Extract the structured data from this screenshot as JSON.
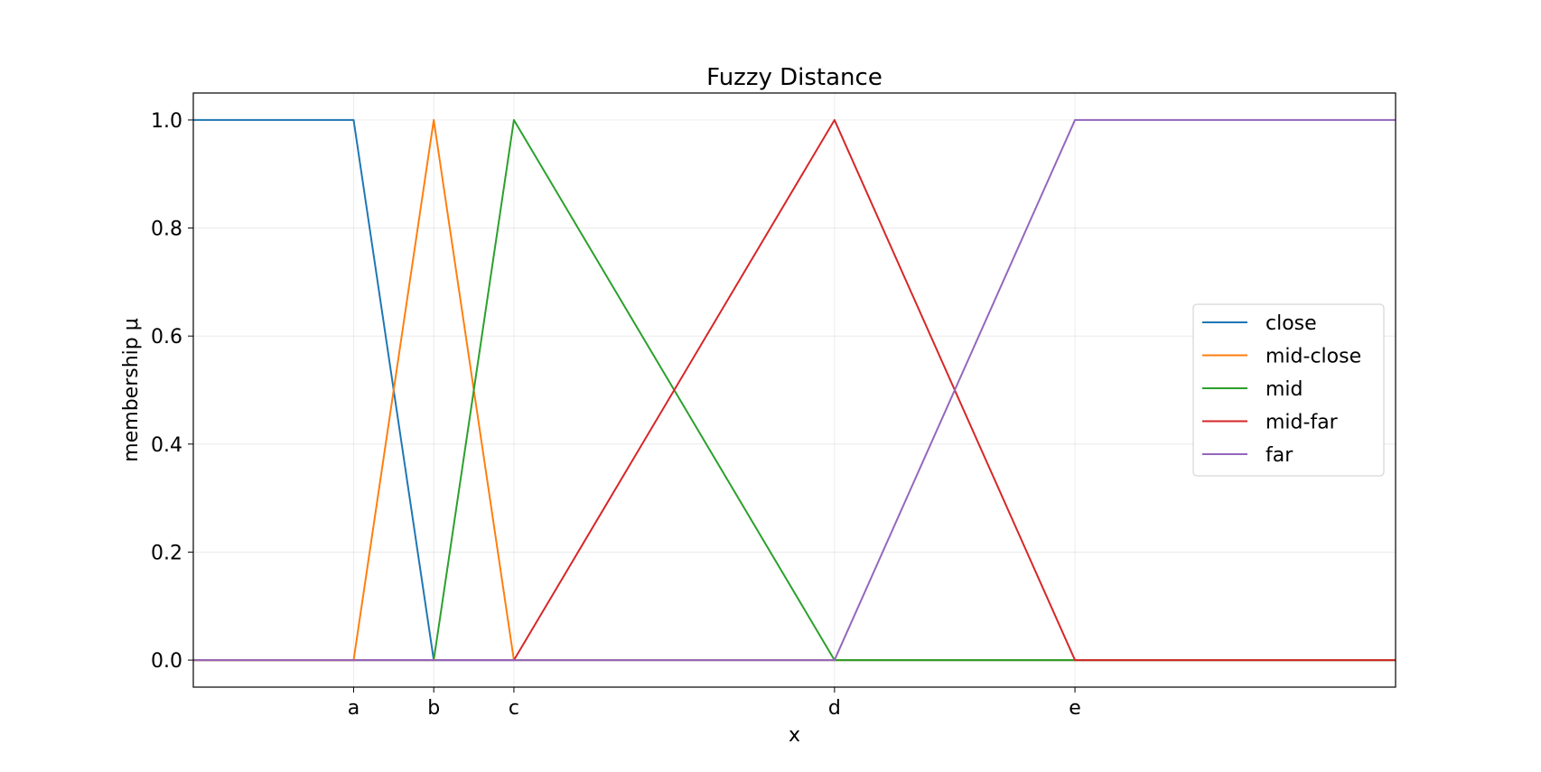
{
  "chart_data": {
    "type": "line",
    "title": "Fuzzy Distance",
    "xlabel": "x",
    "ylabel": "membership μ",
    "x_ticks": [
      {
        "label": "a",
        "value": 1.0
      },
      {
        "label": "b",
        "value": 1.5
      },
      {
        "label": "c",
        "value": 2.0
      },
      {
        "label": "d",
        "value": 4.0
      },
      {
        "label": "e",
        "value": 5.5
      }
    ],
    "xlim": [
      0,
      7.5
    ],
    "ylim": [
      -0.05,
      1.05
    ],
    "y_ticks": [
      {
        "label": "0.0",
        "value": 0.0
      },
      {
        "label": "0.2",
        "value": 0.2
      },
      {
        "label": "0.4",
        "value": 0.4
      },
      {
        "label": "0.6",
        "value": 0.6
      },
      {
        "label": "0.8",
        "value": 0.8
      },
      {
        "label": "1.0",
        "value": 1.0
      }
    ],
    "grid": true,
    "legend_position": "center-right",
    "series": [
      {
        "name": "close",
        "color": "#1f77b4",
        "x": [
          0,
          1.0,
          1.5,
          7.5
        ],
        "y": [
          1,
          1,
          0,
          0
        ]
      },
      {
        "name": "mid-close",
        "color": "#ff7f0e",
        "x": [
          0,
          1.0,
          1.5,
          2.0,
          7.5
        ],
        "y": [
          0,
          0,
          1,
          0,
          0
        ]
      },
      {
        "name": "mid",
        "color": "#2ca02c",
        "x": [
          0,
          1.5,
          2.0,
          4.0,
          7.5
        ],
        "y": [
          0,
          0,
          1,
          0,
          0
        ]
      },
      {
        "name": "mid-far",
        "color": "#d62728",
        "x": [
          0,
          2.0,
          4.0,
          5.5,
          7.5
        ],
        "y": [
          0,
          0,
          1,
          0,
          0
        ]
      },
      {
        "name": "far",
        "color": "#9467bd",
        "x": [
          0,
          4.0,
          5.5,
          7.5
        ],
        "y": [
          0,
          0,
          1,
          1
        ]
      }
    ]
  }
}
